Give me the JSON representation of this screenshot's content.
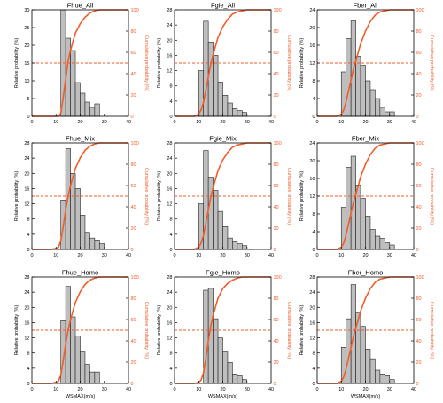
{
  "colors": {
    "bar_fill": "#bebebe",
    "bar_stroke": "#222222",
    "cdf": "#f25c2a",
    "dashed": "#f25c2a",
    "axis": "#000000",
    "right_axis": "#f25c2a"
  },
  "chart_data": [
    {
      "type": "bar",
      "title": "Fhue_All",
      "xlabel": "",
      "ylabel": "Relative probability (%)",
      "y2label": "Cumulative probability (%)",
      "xlim": [
        0,
        40
      ],
      "xticks": [
        0,
        10,
        20,
        30,
        40
      ],
      "ylim": [
        0,
        30
      ],
      "yticks": [
        0,
        5,
        10,
        15,
        20,
        25,
        30
      ],
      "y2lim": [
        0,
        100
      ],
      "y2ticks": [
        0,
        20,
        40,
        60,
        80,
        100
      ],
      "bin_edges": [
        12,
        14,
        16,
        18,
        20,
        22,
        24,
        26,
        28
      ],
      "values": [
        30.5,
        22.0,
        18.5,
        9.5,
        6.5,
        4.0,
        2.5,
        3.5
      ],
      "cdf_x": [
        0,
        8,
        10,
        11,
        12,
        13,
        14,
        15,
        16,
        18,
        20,
        22,
        24,
        26,
        28,
        30,
        34,
        40
      ],
      "cdf_y": [
        0,
        0,
        0,
        0,
        3,
        18,
        35,
        52,
        62,
        78,
        87,
        93,
        97,
        99,
        100,
        100,
        100,
        100
      ],
      "hline": 50
    },
    {
      "type": "bar",
      "title": "Fgie_All",
      "xlabel": "",
      "ylabel": "Relative probability (%)",
      "y2label": "Cumulative probability (%)",
      "xlim": [
        0,
        40
      ],
      "xticks": [
        0,
        10,
        20,
        30,
        40
      ],
      "ylim": [
        0,
        28
      ],
      "yticks": [
        0,
        4,
        8,
        12,
        16,
        20,
        24,
        28
      ],
      "y2lim": [
        0,
        100
      ],
      "y2ticks": [
        0,
        20,
        40,
        60,
        80,
        100
      ],
      "bin_edges": [
        10,
        12,
        14,
        16,
        18,
        20,
        22,
        24,
        26,
        28,
        30
      ],
      "values": [
        12.0,
        25.0,
        19.5,
        16.0,
        9.0,
        5.5,
        3.5,
        2.0,
        1.5,
        1.0
      ],
      "cdf_x": [
        0,
        8,
        10,
        11,
        12,
        13,
        14,
        15,
        16,
        18,
        20,
        22,
        24,
        26,
        28,
        30,
        34,
        40
      ],
      "cdf_y": [
        0,
        0,
        2,
        6,
        13,
        25,
        37,
        49,
        58,
        74,
        84,
        91,
        96,
        98,
        99,
        100,
        100,
        100
      ],
      "hline": 50
    },
    {
      "type": "bar",
      "title": "Fber_All",
      "xlabel": "",
      "ylabel": "Relative probability (%)",
      "y2label": "Cumulative probability (%)",
      "xlim": [
        0,
        40
      ],
      "xticks": [
        0,
        10,
        20,
        30,
        40
      ],
      "ylim": [
        0,
        24
      ],
      "yticks": [
        0,
        4,
        8,
        12,
        16,
        20,
        24
      ],
      "y2lim": [
        0,
        100
      ],
      "y2ticks": [
        0,
        20,
        40,
        60,
        80,
        100
      ],
      "bin_edges": [
        10,
        12,
        14,
        16,
        18,
        20,
        22,
        24,
        26,
        28,
        30,
        32
      ],
      "values": [
        10.0,
        17.5,
        21.5,
        13.5,
        11.5,
        8.0,
        6.0,
        4.0,
        2.0,
        1.0,
        1.0
      ],
      "cdf_x": [
        0,
        8,
        10,
        11,
        12,
        13,
        14,
        15,
        16,
        18,
        20,
        22,
        24,
        26,
        28,
        30,
        34,
        40
      ],
      "cdf_y": [
        0,
        0,
        2,
        6,
        14,
        24,
        34,
        44,
        52,
        68,
        80,
        89,
        95,
        98,
        99,
        100,
        100,
        100
      ],
      "hline": 50
    },
    {
      "type": "bar",
      "title": "Fhue_Mix",
      "xlabel": "",
      "ylabel": "Relative probability (%)",
      "y2label": "Cumulative probability (%)",
      "xlim": [
        0,
        40
      ],
      "xticks": [
        0,
        10,
        20,
        30,
        40
      ],
      "ylim": [
        0,
        28
      ],
      "yticks": [
        0,
        4,
        8,
        12,
        16,
        20,
        24,
        28
      ],
      "y2lim": [
        0,
        100
      ],
      "y2ticks": [
        0,
        20,
        40,
        60,
        80,
        100
      ],
      "bin_edges": [
        12,
        14,
        16,
        18,
        20,
        22,
        24,
        26,
        28,
        30
      ],
      "values": [
        13.0,
        26.5,
        20.0,
        16.0,
        9.0,
        4.5,
        3.0,
        2.5,
        1.5
      ],
      "cdf_x": [
        0,
        8,
        10,
        11,
        12,
        13,
        14,
        15,
        16,
        18,
        20,
        22,
        24,
        26,
        28,
        30,
        34,
        40
      ],
      "cdf_y": [
        0,
        0,
        1,
        2,
        8,
        22,
        37,
        50,
        60,
        76,
        86,
        93,
        97,
        99,
        100,
        100,
        100,
        100
      ],
      "hline": 50
    },
    {
      "type": "bar",
      "title": "Fgie_Mix",
      "xlabel": "",
      "ylabel": "Relative probability (%)",
      "y2label": "Cumulative probability (%)",
      "xlim": [
        0,
        40
      ],
      "xticks": [
        0,
        10,
        20,
        30,
        40
      ],
      "ylim": [
        0,
        28
      ],
      "yticks": [
        0,
        4,
        8,
        12,
        16,
        20,
        24,
        28
      ],
      "y2lim": [
        0,
        100
      ],
      "y2ticks": [
        0,
        20,
        40,
        60,
        80,
        100
      ],
      "bin_edges": [
        10,
        12,
        14,
        16,
        18,
        20,
        22,
        24,
        26,
        28,
        30
      ],
      "values": [
        12.0,
        26.0,
        19.0,
        15.5,
        10.0,
        6.0,
        3.0,
        2.0,
        1.5,
        1.0
      ],
      "cdf_x": [
        0,
        8,
        10,
        11,
        12,
        13,
        14,
        15,
        16,
        18,
        20,
        22,
        24,
        26,
        28,
        30,
        34,
        40
      ],
      "cdf_y": [
        0,
        0,
        2,
        6,
        13,
        25,
        37,
        49,
        58,
        74,
        84,
        91,
        96,
        98,
        99,
        100,
        100,
        100
      ],
      "hline": 50
    },
    {
      "type": "bar",
      "title": "Fber_Mix",
      "xlabel": "",
      "ylabel": "Relative probability (%)",
      "y2label": "Cumulative probability (%)",
      "xlim": [
        0,
        40
      ],
      "xticks": [
        0,
        10,
        20,
        30,
        40
      ],
      "ylim": [
        0,
        24
      ],
      "yticks": [
        0,
        4,
        8,
        12,
        16,
        20,
        24
      ],
      "y2lim": [
        0,
        100
      ],
      "y2ticks": [
        0,
        20,
        40,
        60,
        80,
        100
      ],
      "bin_edges": [
        10,
        12,
        14,
        16,
        18,
        20,
        22,
        24,
        26,
        28,
        30,
        32
      ],
      "values": [
        9.5,
        18.5,
        21.0,
        14.5,
        11.5,
        7.5,
        4.5,
        3.0,
        2.5,
        1.5,
        1.0
      ],
      "cdf_x": [
        0,
        8,
        10,
        11,
        12,
        13,
        14,
        15,
        16,
        18,
        20,
        22,
        24,
        26,
        28,
        30,
        34,
        40
      ],
      "cdf_y": [
        0,
        0,
        2,
        6,
        14,
        24,
        34,
        44,
        52,
        68,
        80,
        89,
        95,
        98,
        99,
        100,
        100,
        100
      ],
      "hline": 50
    },
    {
      "type": "bar",
      "title": "Fhue_Homo",
      "xlabel": "WSMAX(m/s)",
      "ylabel": "Relative probability (%)",
      "y2label": "Cumulative probability (%)",
      "xlim": [
        0,
        40
      ],
      "xticks": [
        0,
        10,
        20,
        30,
        40
      ],
      "ylim": [
        0,
        28
      ],
      "yticks": [
        0,
        4,
        8,
        12,
        16,
        20,
        24,
        28
      ],
      "y2lim": [
        0,
        100
      ],
      "y2ticks": [
        0,
        20,
        40,
        60,
        80,
        100
      ],
      "bin_edges": [
        12,
        14,
        16,
        18,
        20,
        22,
        24,
        26,
        28
      ],
      "values": [
        16.5,
        25.5,
        17.5,
        12.5,
        8.5,
        5.0,
        3.0,
        3.0
      ],
      "cdf_x": [
        0,
        8,
        10,
        11,
        12,
        13,
        14,
        15,
        16,
        18,
        20,
        22,
        24,
        26,
        28,
        30,
        34,
        40
      ],
      "cdf_y": [
        0,
        0,
        1,
        2,
        8,
        22,
        37,
        50,
        60,
        76,
        86,
        93,
        97,
        99,
        100,
        100,
        100,
        100
      ],
      "hline": 50
    },
    {
      "type": "bar",
      "title": "Fgie_Homo",
      "xlabel": "WSMAX(m/s)",
      "ylabel": "Relative probability (%)",
      "y2label": "Cumulative probability (%)",
      "xlim": [
        0,
        40
      ],
      "xticks": [
        0,
        10,
        20,
        30,
        40
      ],
      "ylim": [
        0,
        28
      ],
      "yticks": [
        0,
        4,
        8,
        12,
        16,
        20,
        24,
        28
      ],
      "y2lim": [
        0,
        100
      ],
      "y2ticks": [
        0,
        20,
        40,
        60,
        80,
        100
      ],
      "bin_edges": [
        12,
        14,
        16,
        18,
        20,
        22,
        24,
        26,
        28,
        30
      ],
      "values": [
        24.5,
        25.0,
        17.0,
        12.0,
        8.5,
        5.5,
        2.5,
        2.0,
        1.0
      ],
      "cdf_x": [
        0,
        8,
        10,
        11,
        12,
        13,
        14,
        15,
        16,
        18,
        20,
        22,
        24,
        26,
        28,
        30,
        34,
        40
      ],
      "cdf_y": [
        0,
        0,
        1,
        3,
        10,
        24,
        40,
        54,
        64,
        80,
        89,
        94,
        97,
        99,
        100,
        100,
        100,
        100
      ],
      "hline": 50
    },
    {
      "type": "bar",
      "title": "Fber_Homo",
      "xlabel": "WSMAX(m/s)",
      "ylabel": "Relative probability (%)",
      "y2label": "Cumulative probability (%)",
      "xlim": [
        0,
        40
      ],
      "xticks": [
        0,
        10,
        20,
        30,
        40
      ],
      "ylim": [
        0,
        28
      ],
      "yticks": [
        0,
        4,
        8,
        12,
        16,
        20,
        24,
        28
      ],
      "y2lim": [
        0,
        100
      ],
      "y2ticks": [
        0,
        20,
        40,
        60,
        80,
        100
      ],
      "bin_edges": [
        10,
        12,
        14,
        16,
        18,
        20,
        22,
        24,
        26,
        28,
        30,
        32
      ],
      "values": [
        9.5,
        17.0,
        26.0,
        18.5,
        15.0,
        9.0,
        6.5,
        3.5,
        2.5,
        2.0,
        1.0
      ],
      "cdf_x": [
        0,
        8,
        10,
        11,
        12,
        13,
        14,
        15,
        16,
        18,
        20,
        22,
        24,
        26,
        28,
        30,
        34,
        40
      ],
      "cdf_y": [
        0,
        0,
        2,
        6,
        14,
        24,
        34,
        44,
        52,
        68,
        80,
        89,
        95,
        98,
        99,
        100,
        100,
        100
      ],
      "hline": 50
    }
  ]
}
